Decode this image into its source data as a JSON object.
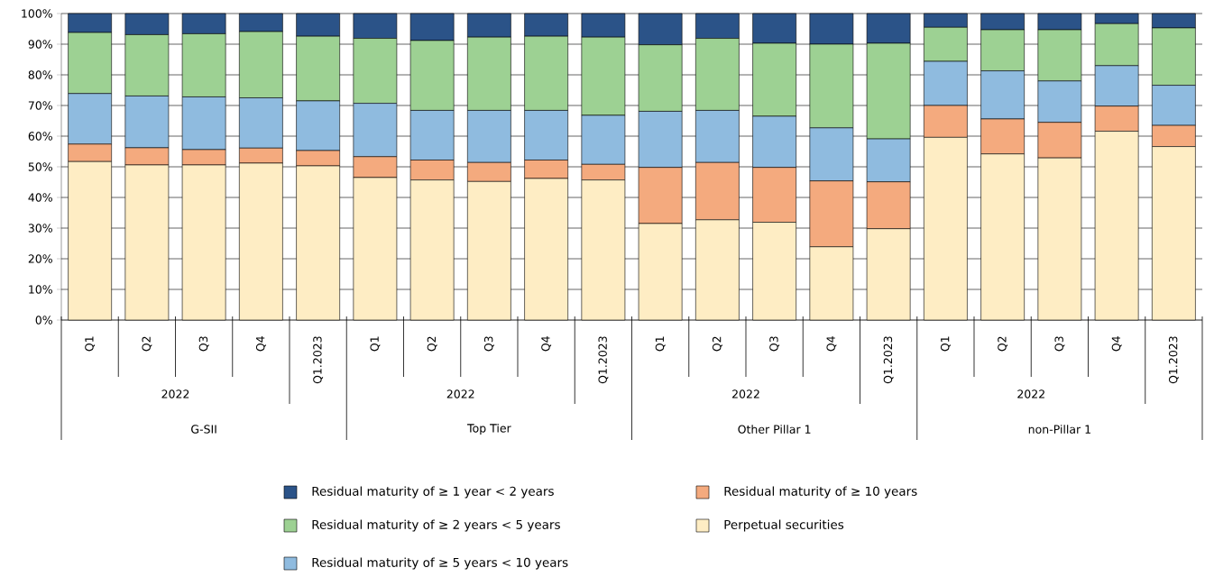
{
  "chart_data": {
    "type": "bar",
    "stacked": true,
    "categories": [
      "Q1",
      "Q2",
      "Q3",
      "Q4",
      "Q1.2023",
      "Q1",
      "Q2",
      "Q3",
      "Q4",
      "Q1.2023",
      "Q1",
      "Q2",
      "Q3",
      "Q4",
      "Q1.2023",
      "Q1",
      "Q2",
      "Q3",
      "Q4",
      "Q1.2023"
    ],
    "series": [
      {
        "name": "Perpetual securities",
        "color": "#feedc4",
        "values": [
          51.7,
          50.6,
          50.6,
          51.2,
          50.3,
          46.5,
          45.7,
          45.2,
          46.2,
          45.7,
          31.5,
          32.7,
          31.9,
          23.9,
          29.8,
          59.6,
          54.2,
          52.9,
          61.6,
          56.6
        ]
      },
      {
        "name": "Residual maturity of ≥ 10 years",
        "color": "#f4aa7e",
        "values": [
          5.7,
          5.6,
          5.0,
          4.9,
          5.0,
          6.8,
          6.5,
          6.2,
          6.0,
          5.1,
          18.3,
          18.7,
          17.9,
          21.5,
          15.3,
          10.4,
          11.4,
          11.6,
          8.2,
          6.9
        ]
      },
      {
        "name": "Residual maturity of ≥ 5 years < 10 years",
        "color": "#8fbbdf",
        "values": [
          16.5,
          16.9,
          17.2,
          16.4,
          16.2,
          17.4,
          16.2,
          17.0,
          16.2,
          16.0,
          18.3,
          17.0,
          16.7,
          17.3,
          14.0,
          14.4,
          15.7,
          13.5,
          13.2,
          13.1
        ]
      },
      {
        "name": "Residual maturity of ≥ 2 years < 5 years",
        "color": "#9dd193",
        "values": [
          19.9,
          20.0,
          20.6,
          21.6,
          21.1,
          21.2,
          22.8,
          23.9,
          24.2,
          25.5,
          21.7,
          23.5,
          23.8,
          27.3,
          31.2,
          11.1,
          13.4,
          16.7,
          13.7,
          18.7
        ]
      },
      {
        "name": "Residual maturity of ≥ 1 year < 2 years",
        "color": "#2b5388",
        "values": [
          6.2,
          6.9,
          6.6,
          5.9,
          7.4,
          8.1,
          8.8,
          7.7,
          7.4,
          7.7,
          10.2,
          8.1,
          9.7,
          10.0,
          9.7,
          4.5,
          5.3,
          5.3,
          3.3,
          4.7
        ]
      }
    ],
    "ylim": [
      0,
      100
    ],
    "yticks": [
      {
        "value": 0,
        "label": "0%"
      },
      {
        "value": 10,
        "label": "10%"
      },
      {
        "value": 20,
        "label": "20%"
      },
      {
        "value": 30,
        "label": "30%"
      },
      {
        "value": 40,
        "label": "40%"
      },
      {
        "value": 50,
        "label": "50%"
      },
      {
        "value": 60,
        "label": "60%"
      },
      {
        "value": 70,
        "label": "70%"
      },
      {
        "value": 80,
        "label": "80%"
      },
      {
        "value": 90,
        "label": "90%"
      },
      {
        "value": 100,
        "label": "100%"
      }
    ],
    "grid": "y",
    "legend": "bottom",
    "annotations": [
      "2022",
      "G-SII",
      "2022",
      "Top Tier",
      "2022",
      "Other Pillar 1",
      "2022",
      "non-Pillar 1"
    ]
  }
}
